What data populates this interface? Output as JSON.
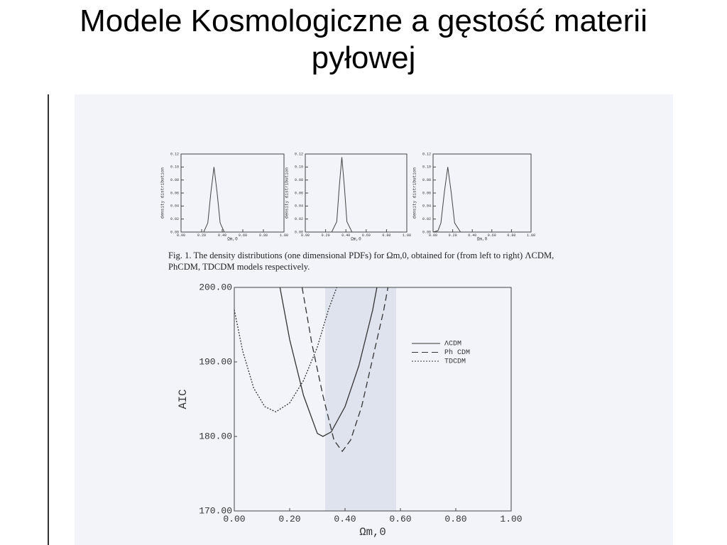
{
  "title": "Modele Kosmologiczne a gęstość materii pyłowej",
  "caption": "Fig. 1. The density distributions (one dimensional PDFs) for Ωm,0, obtained for (from left to right) ΛCDM, PhCDM, TDCDM models respectively.",
  "chart_data": [
    {
      "type": "line",
      "ylabel": "density distribution",
      "xlabel": "Ωm,0",
      "x": [
        0.0,
        0.22,
        0.26,
        0.29,
        0.32,
        0.35,
        0.38,
        0.42,
        1.0
      ],
      "values": [
        0,
        0,
        0.014,
        0.061,
        0.1,
        0.061,
        0.014,
        0,
        0
      ],
      "xlim": [
        0,
        1
      ],
      "ylim": [
        0,
        0.12
      ],
      "xticks": [
        {
          "value": 0,
          "label": "0.00"
        },
        {
          "value": 0.2,
          "label": "0.20"
        },
        {
          "value": 0.4,
          "label": "0.40"
        },
        {
          "value": 0.6,
          "label": "0.60"
        },
        {
          "value": 0.8,
          "label": "0.80"
        },
        {
          "value": 1,
          "label": "1.00"
        }
      ],
      "yticks": [
        {
          "value": 0,
          "label": "0.00"
        },
        {
          "value": 0.02,
          "label": "0.02"
        },
        {
          "value": 0.04,
          "label": "0.04"
        },
        {
          "value": 0.06,
          "label": "0.06"
        },
        {
          "value": 0.08,
          "label": "0.08"
        },
        {
          "value": 0.1,
          "label": "0.10"
        },
        {
          "value": 0.12,
          "label": "0.12"
        }
      ]
    },
    {
      "type": "line",
      "ylabel": "density distribution",
      "xlabel": "Ωm,0",
      "x": [
        0.0,
        0.26,
        0.31,
        0.335,
        0.36,
        0.385,
        0.41,
        0.46,
        1.0
      ],
      "values": [
        0,
        0,
        0.016,
        0.07,
        0.115,
        0.07,
        0.016,
        0,
        0
      ],
      "xlim": [
        0,
        1
      ],
      "ylim": [
        0,
        0.12
      ],
      "xticks": [
        {
          "value": 0,
          "label": "0.00"
        },
        {
          "value": 0.2,
          "label": "0.20"
        },
        {
          "value": 0.4,
          "label": "0.40"
        },
        {
          "value": 0.6,
          "label": "0.60"
        },
        {
          "value": 0.8,
          "label": "0.80"
        },
        {
          "value": 1,
          "label": "1.00"
        }
      ],
      "yticks": [
        {
          "value": 0,
          "label": "0.00"
        },
        {
          "value": 0.02,
          "label": "0.02"
        },
        {
          "value": 0.04,
          "label": "0.04"
        },
        {
          "value": 0.06,
          "label": "0.06"
        },
        {
          "value": 0.08,
          "label": "0.08"
        },
        {
          "value": 0.1,
          "label": "0.10"
        },
        {
          "value": 0.12,
          "label": "0.12"
        }
      ]
    },
    {
      "type": "line",
      "ylabel": "density distribution",
      "xlabel": "Ωm,0",
      "x": [
        0.0,
        0.05,
        0.08,
        0.115,
        0.15,
        0.185,
        0.22,
        0.28,
        1.0
      ],
      "values": [
        0,
        0.002,
        0.014,
        0.061,
        0.1,
        0.061,
        0.014,
        0,
        0
      ],
      "xlim": [
        0,
        1
      ],
      "ylim": [
        0,
        0.12
      ],
      "xticks": [
        {
          "value": 0,
          "label": "0.00"
        },
        {
          "value": 0.2,
          "label": "0.20"
        },
        {
          "value": 0.4,
          "label": "0.40"
        },
        {
          "value": 0.6,
          "label": "0.60"
        },
        {
          "value": 0.8,
          "label": "0.80"
        },
        {
          "value": 1,
          "label": "1.00"
        }
      ],
      "yticks": [
        {
          "value": 0,
          "label": "0.00"
        },
        {
          "value": 0.02,
          "label": "0.02"
        },
        {
          "value": 0.04,
          "label": "0.04"
        },
        {
          "value": 0.06,
          "label": "0.06"
        },
        {
          "value": 0.08,
          "label": "0.08"
        },
        {
          "value": 0.1,
          "label": "0.10"
        },
        {
          "value": 0.12,
          "label": "0.12"
        }
      ]
    },
    {
      "type": "line",
      "ylabel": "AIC",
      "xlabel": "Ωm,0",
      "series": [
        {
          "name": "ΛCDM",
          "color": "#333333",
          "dash": "solid",
          "x": [
            0.165,
            0.2,
            0.25,
            0.3,
            0.32,
            0.35,
            0.4,
            0.45,
            0.5,
            0.515
          ],
          "values": [
            200,
            193,
            185.5,
            180.4,
            180,
            180.6,
            184,
            189.5,
            197,
            200
          ]
        },
        {
          "name": "Ph CDM",
          "color": "#333333",
          "dash": "dashed",
          "x": [
            0.245,
            0.28,
            0.32,
            0.36,
            0.39,
            0.42,
            0.46,
            0.5,
            0.54,
            0.555
          ],
          "values": [
            200,
            192.5,
            185.5,
            179.5,
            178,
            179.5,
            184,
            190.5,
            197,
            200
          ]
        },
        {
          "name": "TDCDM",
          "color": "#333333",
          "dash": "dotted",
          "x": [
            0.0,
            0.03,
            0.07,
            0.11,
            0.15,
            0.2,
            0.25,
            0.3,
            0.34,
            0.37
          ],
          "values": [
            197,
            191.5,
            186.5,
            184,
            183.3,
            184.5,
            187.5,
            192,
            197,
            200
          ]
        }
      ],
      "xlim": [
        0,
        1
      ],
      "ylim": [
        170,
        200
      ],
      "xticks": [
        {
          "value": 0,
          "label": "0.00"
        },
        {
          "value": 0.2,
          "label": "0.20"
        },
        {
          "value": 0.4,
          "label": "0.40"
        },
        {
          "value": 0.6,
          "label": "0.60"
        },
        {
          "value": 0.8,
          "label": "0.80"
        },
        {
          "value": 1,
          "label": "1.00"
        }
      ],
      "yticks": [
        {
          "value": 170,
          "label": "170.00"
        },
        {
          "value": 180,
          "label": "180.00"
        },
        {
          "value": 190,
          "label": "190.00"
        },
        {
          "value": 200,
          "label": "200.00"
        }
      ]
    }
  ]
}
